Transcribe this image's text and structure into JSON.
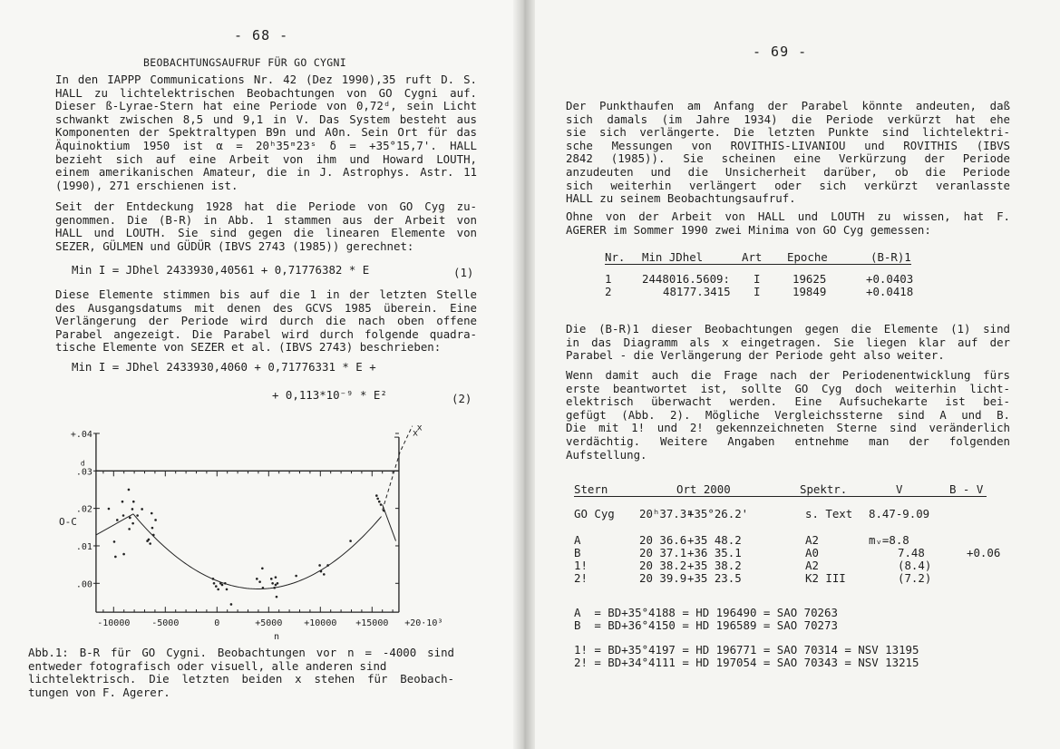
{
  "left_page": {
    "page_number": "- 68 -",
    "title": "BEOBACHTUNGSAUFRUF FÜR GO CYGNI",
    "paragraph1": [
      "In den IAPPP Communications Nr. 42 (Dez 1990),35 ruft D. S.",
      "HALL zu  lichtelektrischen Beobachtungen  von GO Cygni auf.",
      "Dieser ß-Lyrae-Stern hat eine Periode von 0,72ᵈ, sein Licht",
      "schwankt zwischen  8,5 und 9,1 in V. Das System besteht aus",
      "Komponenten der Spektraltypen B9n und A0n. Sein Ort für das",
      "Äquinoktium 1950  ist   α =  20ʰ35ᵐ23ˢ  δ = +35°15,7'. HALL",
      "bezieht sich  auf eine  Arbeit von  ihm und  Howard  LOUTH,",
      "einem amerikanischen Amateur, die in J. Astrophys. Astr. 11",
      "(1990), 271 erschienen ist."
    ],
    "paragraph2": [
      "Seit der  Entdeckung 1928  hat die  Periode von  GO Cyg zu-",
      "genommen. Die  (B-R) in  Abb. 1  stammen aus der Arbeit von",
      "HALL und  LOUTH. Sie  sind gegen  die linearen Elemente von",
      "SEZER, GÜLMEN und GÜDÜR (IBVS 2743 (1985)) gerechnet:"
    ],
    "equation1": "Min I = JDhel 2433930,40561 + 0,71776382 * E",
    "equation1_number": "(1)",
    "paragraph3": [
      "Diese Elemente  stimmen bis auf die 1 in der letzten Stelle",
      "des Ausgangsdatums  mit denen  des GCVS  1985 überein. Eine",
      "Verlängerung der   Periode  wird durch die nach oben offene",
      "Parabel angezeigt.  Die Parabel wird durch folgende quadra-",
      "tische Elemente von SEZER et al. (IBVS 2743) beschrieben:"
    ],
    "equation2_line1": "Min I = JDhel 2433930,4060 + 0,71776331 * E +",
    "equation2_line2": "+ 0,113*10⁻⁹ * E²",
    "equation2_number": "(2)",
    "caption": [
      "Abb.1: B-R für GO Cygni. Beobachtungen vor n = -4000 sind",
      "entweder fotografisch oder visuell, alle anderen sind",
      "lichtelektrisch. Die letzten beiden x stehen für Beobach-",
      "tungen von F. Agerer."
    ]
  },
  "chart_data": {
    "type": "scatter",
    "title": "",
    "xlabel": "n",
    "ylabel": "O-C",
    "x_unit_note": "·10³",
    "y_unit_mark": "d",
    "xlim": [
      -11.7,
      17.6
    ],
    "ylim": [
      -0.0077,
      0.04
    ],
    "x_ticks": [
      {
        "value": -10,
        "label": "-10000"
      },
      {
        "value": -5,
        "label": "-5000"
      },
      {
        "value": 0,
        "label": "0"
      },
      {
        "value": 5,
        "label": "+5000"
      },
      {
        "value": 10,
        "label": "+10000"
      },
      {
        "value": 15,
        "label": "+15000"
      },
      {
        "value": 20,
        "label": "+20·10³"
      }
    ],
    "y_ticks": [
      {
        "value": 0.04,
        "label": "+.04"
      },
      {
        "value": 0.03,
        "label": ".03"
      },
      {
        "value": 0.02,
        "label": ".02"
      },
      {
        "value": 0.01,
        "label": ".01"
      },
      {
        "value": 0.0,
        "label": ".00"
      }
    ],
    "points": [
      [
        -10.47,
        0.0199
      ],
      [
        -9.94,
        0.0111
      ],
      [
        -9.82,
        0.0071
      ],
      [
        -9.65,
        0.0169
      ],
      [
        -9.15,
        0.0218
      ],
      [
        -9.06,
        0.0181
      ],
      [
        -9.01,
        0.0078
      ],
      [
        -8.54,
        0.025
      ],
      [
        -8.48,
        0.0145
      ],
      [
        -8.42,
        0.0175
      ],
      [
        -8.19,
        0.0198
      ],
      [
        -8.13,
        0.016
      ],
      [
        -8.07,
        0.0218
      ],
      [
        -7.69,
        0.0181
      ],
      [
        -7.25,
        0.0198
      ],
      [
        -6.73,
        0.0113
      ],
      [
        -6.61,
        0.0117
      ],
      [
        -6.46,
        0.0106
      ],
      [
        -6.32,
        0.0187
      ],
      [
        -6.26,
        0.0148
      ],
      [
        -6.14,
        0.0129
      ],
      [
        -5.94,
        0.0169
      ],
      [
        -0.38,
        0.0012
      ],
      [
        -0.29,
        0.0
      ],
      [
        -0.09,
        -0.0008
      ],
      [
        0.12,
        -0.0016
      ],
      [
        0.35,
        0.0
      ],
      [
        0.5,
        -0.0004
      ],
      [
        0.79,
        0.0
      ],
      [
        0.94,
        -0.0016
      ],
      [
        1.37,
        -0.0056
      ],
      [
        3.86,
        0.0012
      ],
      [
        4.15,
        0.0004
      ],
      [
        4.39,
        0.004
      ],
      [
        4.44,
        -0.0012
      ],
      [
        5.26,
        0.0012
      ],
      [
        5.38,
        0.0
      ],
      [
        5.56,
        -0.0012
      ],
      [
        5.67,
        -0.0004
      ],
      [
        5.67,
        0.0016
      ],
      [
        5.76,
        -0.0036
      ],
      [
        5.85,
        0.0
      ],
      [
        7.66,
        0.002
      ],
      [
        9.94,
        0.0048
      ],
      [
        10.06,
        0.0032
      ],
      [
        10.35,
        0.0024
      ],
      [
        10.73,
        0.0048
      ],
      [
        12.92,
        0.0113
      ],
      [
        15.44,
        0.0234
      ],
      [
        15.56,
        0.0226
      ],
      [
        15.7,
        0.0218
      ],
      [
        15.85,
        0.021
      ],
      [
        16.14,
        0.0194
      ]
    ],
    "agerer_points": [
      [
        19.625,
        0.0403
      ],
      [
        19.849,
        0.0418
      ]
    ],
    "fit_segments": {
      "left_line": [
        [
          -11.7,
          0.0129
        ],
        [
          -8.1,
          0.0185
        ]
      ],
      "parabola_vertex": [
        4.0,
        -0.0015
      ],
      "parabola_ends": [
        -8.1,
        16.0
      ],
      "right_line": [
        [
          16.0,
          0.021
        ],
        [
          17.3,
          0.0113
        ]
      ],
      "dashed_extension": [
        [
          16.0,
          0.0195
        ],
        [
          17.7,
          0.035
        ],
        [
          18.9,
          0.042
        ]
      ]
    }
  },
  "right_page": {
    "page_number": "- 69 -",
    "paragraph1": [
      "Der Punkthaufen  am Anfang der Parabel könnte andeuten, daß",
      "sich damals  (im Jahre  1934) die  Periode verkürzt hat ehe",
      "sie sich verlängerte. Die letzten Punkte sind lichtelektri-",
      "sche Messungen  von ROVITHIS-LIVANIOU  und  ROVITHIS  (IBVS",
      "2842 (1985)).  Sie scheinen  eine  Verkürzung  der  Periode",
      "anzudeuten und  die Unsicherheit  darüber, ob  die  Periode",
      "sich weiterhin  verlängert oder  sich verkürzt  veranlasste",
      "HALL zu seinem Beobachtungsaufruf."
    ],
    "paragraph2": [
      "Ohne von  der Arbeit  von HALL  und LOUTH zu wissen, hat F.",
      "AGERER im Sommer 1990 zwei Minima von GO Cyg gemessen:"
    ],
    "minima_table": {
      "headers": [
        "Nr.",
        "Min JDhel",
        "Art",
        "Epoche",
        "(B-R)1"
      ],
      "rows": [
        [
          "1",
          "2448016.5609:",
          "I",
          "19625",
          "+0.0403"
        ],
        [
          "2",
          "48177.3415",
          "I",
          "19849",
          "+0.0418"
        ]
      ]
    },
    "paragraph3": [
      "Die (B-R)1 dieser Beobachtungen gegen die Elemente (1) sind",
      "in das  Diagramm als x eingetragen. Sie liegen klar auf der",
      "Parabel - die Verlängerung der Periode geht also weiter."
    ],
    "paragraph4": [
      "Wenn damit auch die Frage nach der Periodenentwicklung fürs",
      "erste beantwortet  ist, sollte GO Cyg doch weiterhin licht-",
      "elektrisch überwacht  werden. Eine  Aufsuchekarte ist  bei-",
      "gefügt (Abb.  2). Mögliche  Vergleichssterne sind  A und B.",
      "Die mit 1! und 2! gekennzeichneten Sterne sind veränderlich",
      "verdächtig. Weitere  Angaben  entnehme  man  der  folgenden",
      "Aufstellung."
    ],
    "star_table": {
      "headers": [
        "Stern",
        "Ort 2000",
        "Spektr.",
        "V",
        "B - V"
      ],
      "rows": [
        [
          "GO Cyg",
          "20ʰ37.3ᵐ",
          "+35°26.2'",
          "s. Text",
          "8.47-9.09",
          ""
        ],
        [
          "A",
          "20 36.6",
          "+35 48.2",
          "A2",
          "mᵥ=8.8",
          ""
        ],
        [
          "B",
          "20 37.1",
          "+36 35.1",
          "A0",
          "7.48",
          "+0.06"
        ],
        [
          "1!",
          "20 38.2",
          "+35 38.2",
          "A2",
          "(8.4)",
          ""
        ],
        [
          "2!",
          "20 39.9",
          "+35 23.5",
          "K2 III",
          "(7.2)",
          ""
        ]
      ]
    },
    "identifications": [
      "A  = BD+35°4188 = HD 196490 = SAO 70263",
      "B  = BD+36°4150 = HD 196589 = SAO 70273",
      "1! = BD+35°4197 = HD 196771 = SAO 70314 = NSV 13195",
      "2! = BD+34°4111 = HD 197054 = SAO 70343 = NSV 13215"
    ]
  }
}
